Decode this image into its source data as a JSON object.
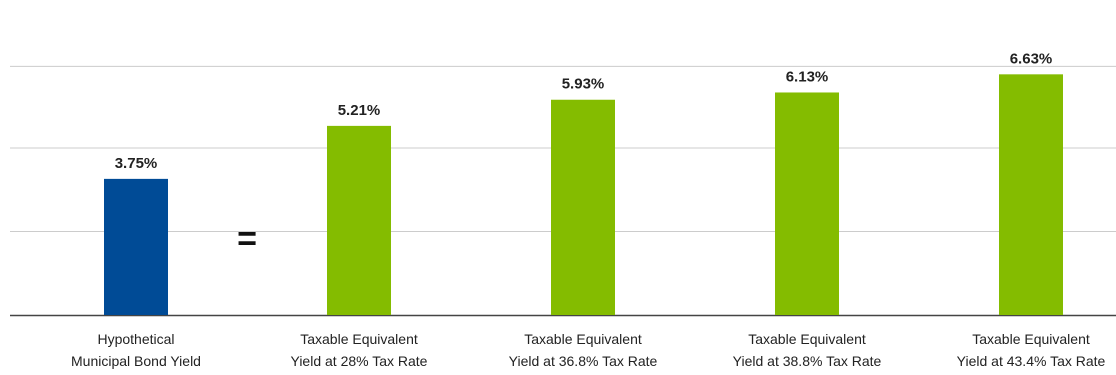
{
  "chart_data": {
    "type": "bar",
    "categories": [
      [
        "Hypothetical",
        "Municipal Bond Yield"
      ],
      [
        "Taxable Equivalent",
        "Yield at 28% Tax Rate"
      ],
      [
        "Taxable Equivalent",
        "Yield at 36.8% Tax Rate"
      ],
      [
        "Taxable Equivalent",
        "Yield at 38.8% Tax Rate"
      ],
      [
        "Taxable Equivalent",
        "Yield at 43.4% Tax Rate"
      ]
    ],
    "values": [
      3.75,
      5.21,
      5.93,
      6.13,
      6.63
    ],
    "data_labels": [
      "3.75%",
      "5.21%",
      "5.93%",
      "6.13%",
      "6.63%"
    ],
    "bar_colors": [
      "#004b96",
      "#84bc00",
      "#84bc00",
      "#84bc00",
      "#84bc00"
    ],
    "ylim": [
      0,
      7.5
    ],
    "grid": true,
    "annotation": "="
  }
}
